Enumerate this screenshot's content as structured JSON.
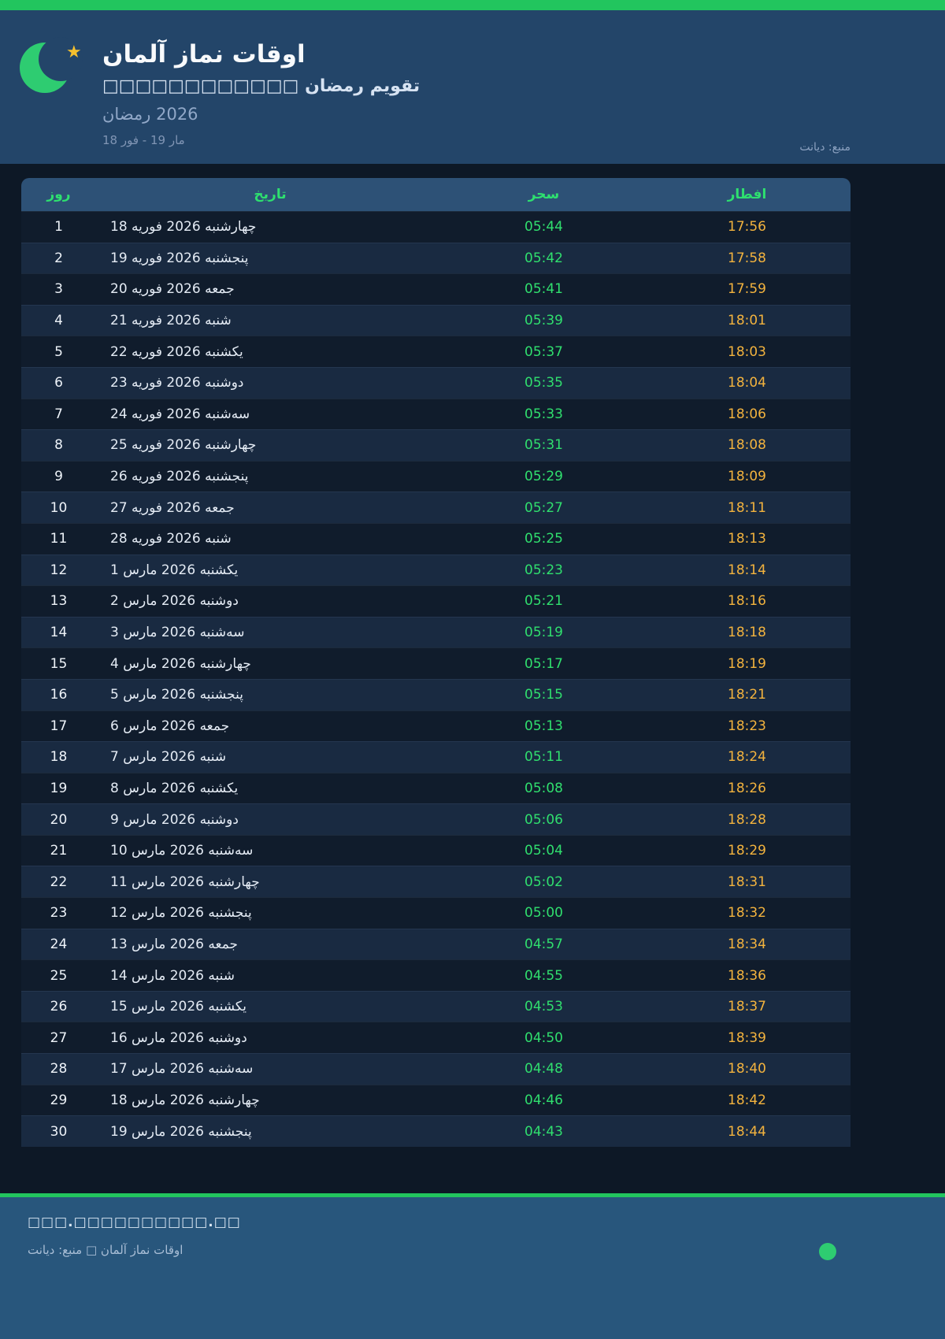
{
  "header": {
    "title": "اوقات نماز آلمان",
    "subtitle": "تقویم رمضان □□□□□□□□□□□□",
    "ramadan": {
      "word": "رمضان",
      "year": "2026"
    },
    "range": {
      "from_day": "18",
      "from_month": "فور",
      "to_day": "19",
      "to_month": "مار"
    },
    "source": "منبع: دیانت",
    "logo": {
      "star_char": "★"
    }
  },
  "table": {
    "columns": {
      "day": "روز",
      "date": "تاریخ",
      "suhoor": "سحر",
      "iftar": "افطار"
    },
    "year": "2026",
    "rows": [
      {
        "day": "1",
        "date_day": "18",
        "date_month": "فوریه",
        "date_weekday": "چهارشنبه",
        "suhoor": "05:44",
        "iftar": "17:56"
      },
      {
        "day": "2",
        "date_day": "19",
        "date_month": "فوریه",
        "date_weekday": "پنجشنبه",
        "suhoor": "05:42",
        "iftar": "17:58"
      },
      {
        "day": "3",
        "date_day": "20",
        "date_month": "فوریه",
        "date_weekday": "جمعه",
        "suhoor": "05:41",
        "iftar": "17:59"
      },
      {
        "day": "4",
        "date_day": "21",
        "date_month": "فوریه",
        "date_weekday": "شنبه",
        "suhoor": "05:39",
        "iftar": "18:01"
      },
      {
        "day": "5",
        "date_day": "22",
        "date_month": "فوریه",
        "date_weekday": "یکشنبه",
        "suhoor": "05:37",
        "iftar": "18:03"
      },
      {
        "day": "6",
        "date_day": "23",
        "date_month": "فوریه",
        "date_weekday": "دوشنبه",
        "suhoor": "05:35",
        "iftar": "18:04"
      },
      {
        "day": "7",
        "date_day": "24",
        "date_month": "فوریه",
        "date_weekday": "سه‌شنبه",
        "suhoor": "05:33",
        "iftar": "18:06"
      },
      {
        "day": "8",
        "date_day": "25",
        "date_month": "فوریه",
        "date_weekday": "چهارشنبه",
        "suhoor": "05:31",
        "iftar": "18:08"
      },
      {
        "day": "9",
        "date_day": "26",
        "date_month": "فوریه",
        "date_weekday": "پنجشنبه",
        "suhoor": "05:29",
        "iftar": "18:09"
      },
      {
        "day": "10",
        "date_day": "27",
        "date_month": "فوریه",
        "date_weekday": "جمعه",
        "suhoor": "05:27",
        "iftar": "18:11"
      },
      {
        "day": "11",
        "date_day": "28",
        "date_month": "فوریه",
        "date_weekday": "شنبه",
        "suhoor": "05:25",
        "iftar": "18:13"
      },
      {
        "day": "12",
        "date_day": "1",
        "date_month": "مارس",
        "date_weekday": "یکشنبه",
        "suhoor": "05:23",
        "iftar": "18:14"
      },
      {
        "day": "13",
        "date_day": "2",
        "date_month": "مارس",
        "date_weekday": "دوشنبه",
        "suhoor": "05:21",
        "iftar": "18:16"
      },
      {
        "day": "14",
        "date_day": "3",
        "date_month": "مارس",
        "date_weekday": "سه‌شنبه",
        "suhoor": "05:19",
        "iftar": "18:18"
      },
      {
        "day": "15",
        "date_day": "4",
        "date_month": "مارس",
        "date_weekday": "چهارشنبه",
        "suhoor": "05:17",
        "iftar": "18:19"
      },
      {
        "day": "16",
        "date_day": "5",
        "date_month": "مارس",
        "date_weekday": "پنجشنبه",
        "suhoor": "05:15",
        "iftar": "18:21"
      },
      {
        "day": "17",
        "date_day": "6",
        "date_month": "مارس",
        "date_weekday": "جمعه",
        "suhoor": "05:13",
        "iftar": "18:23"
      },
      {
        "day": "18",
        "date_day": "7",
        "date_month": "مارس",
        "date_weekday": "شنبه",
        "suhoor": "05:11",
        "iftar": "18:24"
      },
      {
        "day": "19",
        "date_day": "8",
        "date_month": "مارس",
        "date_weekday": "یکشنبه",
        "suhoor": "05:08",
        "iftar": "18:26"
      },
      {
        "day": "20",
        "date_day": "9",
        "date_month": "مارس",
        "date_weekday": "دوشنبه",
        "suhoor": "05:06",
        "iftar": "18:28"
      },
      {
        "day": "21",
        "date_day": "10",
        "date_month": "مارس",
        "date_weekday": "سه‌شنبه",
        "suhoor": "05:04",
        "iftar": "18:29"
      },
      {
        "day": "22",
        "date_day": "11",
        "date_month": "مارس",
        "date_weekday": "چهارشنبه",
        "suhoor": "05:02",
        "iftar": "18:31"
      },
      {
        "day": "23",
        "date_day": "12",
        "date_month": "مارس",
        "date_weekday": "پنجشنبه",
        "suhoor": "05:00",
        "iftar": "18:32"
      },
      {
        "day": "24",
        "date_day": "13",
        "date_month": "مارس",
        "date_weekday": "جمعه",
        "suhoor": "04:57",
        "iftar": "18:34"
      },
      {
        "day": "25",
        "date_day": "14",
        "date_month": "مارس",
        "date_weekday": "شنبه",
        "suhoor": "04:55",
        "iftar": "18:36"
      },
      {
        "day": "26",
        "date_day": "15",
        "date_month": "مارس",
        "date_weekday": "یکشنبه",
        "suhoor": "04:53",
        "iftar": "18:37"
      },
      {
        "day": "27",
        "date_day": "16",
        "date_month": "مارس",
        "date_weekday": "دوشنبه",
        "suhoor": "04:50",
        "iftar": "18:39"
      },
      {
        "day": "28",
        "date_day": "17",
        "date_month": "مارس",
        "date_weekday": "سه‌شنبه",
        "suhoor": "04:48",
        "iftar": "18:40"
      },
      {
        "day": "29",
        "date_day": "18",
        "date_month": "مارس",
        "date_weekday": "چهارشنبه",
        "suhoor": "04:46",
        "iftar": "18:42"
      },
      {
        "day": "30",
        "date_day": "19",
        "date_month": "مارس",
        "date_weekday": "پنجشنبه",
        "suhoor": "04:43",
        "iftar": "18:44"
      }
    ]
  },
  "footer": {
    "line1": "□□□.□□□□□□□□□□.□□",
    "line2": "اوقات نماز آلمان □ منبع: دیانت"
  },
  "colors": {
    "top_bar": "#22c55e",
    "header_bg": "#234569",
    "page_bg": "#0d1826",
    "table_header_bg": "#2d5176",
    "table_header_text": "#2ee06f",
    "row_dark": "#101c2c",
    "row_light": "#192a41",
    "suhoor_time": "#30df6e",
    "iftar_time": "#f3b33e",
    "crescent": "#2ecc71",
    "star": "#f5c02e",
    "footer_bg": "#28567c",
    "footer_dot": "#2ecc71"
  }
}
